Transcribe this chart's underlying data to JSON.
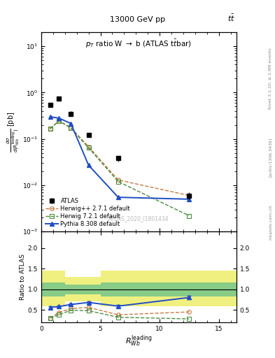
{
  "atlas_x": [
    0.75,
    1.5,
    2.5,
    4.0,
    6.5,
    12.5
  ],
  "atlas_y": [
    0.55,
    0.75,
    0.35,
    0.12,
    0.038,
    0.006
  ],
  "atlas_yerr_lo": [
    0.05,
    0.07,
    0.04,
    0.012,
    0.005,
    0.001
  ],
  "atlas_yerr_hi": [
    0.05,
    0.07,
    0.04,
    0.012,
    0.005,
    0.001
  ],
  "herwig_pp_x": [
    0.75,
    1.5,
    2.5,
    4.0,
    6.5,
    12.5
  ],
  "herwig_pp_y": [
    0.165,
    0.245,
    0.175,
    0.068,
    0.013,
    0.006
  ],
  "herwig7_x": [
    0.75,
    1.5,
    2.5,
    4.0,
    6.5,
    12.5
  ],
  "herwig7_y": [
    0.165,
    0.245,
    0.17,
    0.064,
    0.012,
    0.0022
  ],
  "pythia_x": [
    0.75,
    1.5,
    2.5,
    4.0,
    6.5,
    12.5
  ],
  "pythia_y": [
    0.3,
    0.28,
    0.215,
    0.027,
    0.0055,
    0.005
  ],
  "ratio_x": [
    0.75,
    1.5,
    2.5,
    4.0,
    6.5,
    12.5
  ],
  "ratio_herwig_pp": [
    0.3,
    0.44,
    0.53,
    0.56,
    0.38,
    0.45
  ],
  "ratio_herwig7": [
    0.3,
    0.38,
    0.49,
    0.48,
    0.32,
    0.28
  ],
  "ratio_pythia": [
    0.56,
    0.58,
    0.63,
    0.68,
    0.59,
    0.8
  ],
  "ratio_pythia_err": [
    0.03,
    0.03,
    0.03,
    0.02,
    0.03,
    0.05
  ],
  "band_edges": [
    0.0,
    2.0,
    5.0,
    16.5
  ],
  "band_yellow_lo": [
    0.58,
    0.7,
    0.58
  ],
  "band_yellow_hi": [
    1.45,
    1.3,
    1.45
  ],
  "band_green_lo": [
    0.83,
    0.88,
    0.83
  ],
  "band_green_hi": [
    1.17,
    1.12,
    1.17
  ],
  "xlim": [
    0,
    16.5
  ],
  "ylim_main": [
    0.001,
    20
  ],
  "ylim_ratio": [
    0.2,
    2.4
  ],
  "ratio_yticks": [
    0.5,
    1.0,
    1.5,
    2.0
  ],
  "color_atlas": "#000000",
  "color_herwig_pp": "#c87941",
  "color_herwig7": "#4a8c3f",
  "color_pythia": "#1f4dc5",
  "color_band_green": "#88cc88",
  "color_band_yellow": "#f0f080",
  "bg_color": "#ffffff"
}
